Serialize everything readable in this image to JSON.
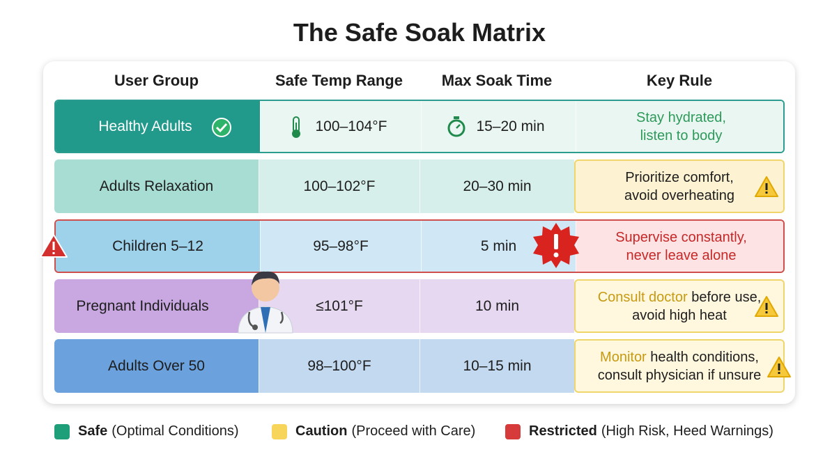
{
  "title": "The Safe Soak Matrix",
  "table": {
    "headers": [
      "User Group",
      "Safe Temp Range",
      "Max Soak Time",
      "Key Rule"
    ],
    "rows": [
      {
        "group": "Healthy Adults",
        "temp": "100–104°F",
        "time": "15–20 min",
        "rule": {
          "text": "Stay hydrated, listen to body"
        }
      },
      {
        "group": "Adults Relaxation",
        "temp": "100–102°F",
        "time": "20–30 min",
        "rule": {
          "text": "Prioritize comfort, avoid overheating"
        }
      },
      {
        "group": "Children 5–12",
        "temp": "95–98°F",
        "time": "5 min",
        "rule": {
          "text": "Supervise constantly, never leave alone"
        }
      },
      {
        "group": "Pregnant Individuals",
        "temp": "≤101°F",
        "time": "10 min",
        "rule": {
          "highlight": "Consult doctor",
          "text": "before use, avoid high heat"
        }
      },
      {
        "group": "Adults Over 50",
        "temp": "98–100°F",
        "time": "10–15 min",
        "rule": {
          "highlight": "Monitor",
          "text": "health conditions, consult physician if unsure"
        }
      }
    ]
  },
  "legend": [
    {
      "label": "Safe",
      "description": "(Optimal Conditions)"
    },
    {
      "label": "Caution",
      "description": "(Proceed with Care)"
    },
    {
      "label": "Restricted",
      "description": "(High Risk, Heed Warnings)"
    }
  ]
}
